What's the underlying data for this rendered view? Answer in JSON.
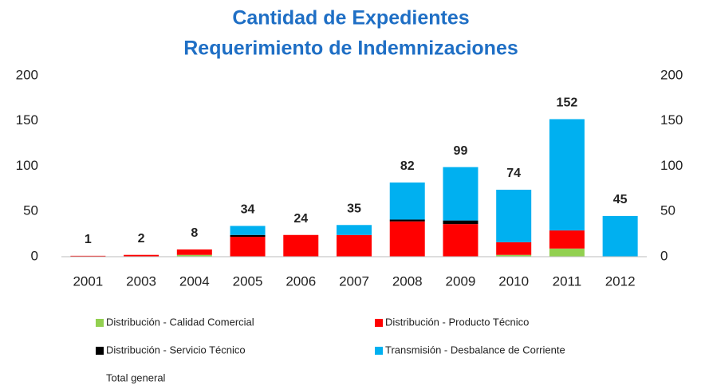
{
  "chart_data": {
    "type": "bar",
    "stacked": true,
    "title": [
      "Cantidad de Expedientes",
      "Requerimiento de Indemnizaciones"
    ],
    "categories": [
      "2001",
      "2003",
      "2004",
      "2005",
      "2006",
      "2007",
      "2008",
      "2009",
      "2010",
      "2011",
      "2012"
    ],
    "series": [
      {
        "name": "Distribución - Calidad Comercial",
        "color": "#92d050",
        "values": [
          0,
          0,
          2,
          0,
          0,
          0,
          0,
          0,
          2,
          9,
          0
        ]
      },
      {
        "name": "Distribución - Producto Técnico",
        "color": "#ff0000",
        "values": [
          1,
          2,
          6,
          22,
          24,
          24,
          39,
          36,
          14,
          20,
          0
        ]
      },
      {
        "name": "Distribución - Servicio Técnico",
        "color": "#000000",
        "values": [
          0,
          0,
          0,
          2,
          0,
          0,
          2,
          4,
          0,
          0,
          0
        ]
      },
      {
        "name": "Transmisión - Desbalance de Corriente",
        "color": "#00b0f0",
        "values": [
          0,
          0,
          0,
          10,
          0,
          11,
          41,
          59,
          58,
          123,
          45
        ]
      },
      {
        "name": "Total general",
        "values": [
          1,
          2,
          8,
          34,
          24,
          35,
          82,
          99,
          74,
          152,
          45
        ]
      }
    ],
    "ylim": [
      0,
      200
    ],
    "yticks": [
      0,
      50,
      100,
      150,
      200
    ],
    "y2lim": [
      0,
      200
    ],
    "y2ticks": [
      0,
      50,
      100,
      150,
      200
    ]
  }
}
